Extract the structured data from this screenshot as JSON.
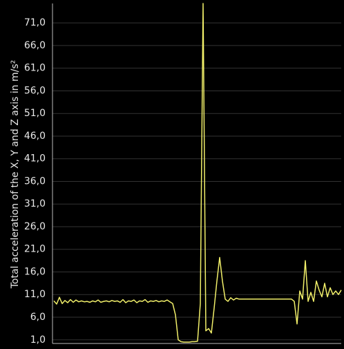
{
  "chart_data": {
    "type": "line",
    "y_label": "Total acceleration of the X, Y and Z axis in m/s²",
    "color": "#f2f06a",
    "grid": true,
    "ylim": [
      0.2,
      75.3
    ],
    "yticks": [
      {
        "value": 1,
        "label": "1,0"
      },
      {
        "value": 6,
        "label": "6,0"
      },
      {
        "value": 11,
        "label": "11,0"
      },
      {
        "value": 16,
        "label": "16,0"
      },
      {
        "value": 21,
        "label": "21,0"
      },
      {
        "value": 26,
        "label": "26,0"
      },
      {
        "value": 31,
        "label": "31,0"
      },
      {
        "value": 36,
        "label": "36,0"
      },
      {
        "value": 41,
        "label": "41,0"
      },
      {
        "value": 46,
        "label": "46,0"
      },
      {
        "value": 51,
        "label": "51,0"
      },
      {
        "value": 56,
        "label": "56,0"
      },
      {
        "value": 61,
        "label": "61,0"
      },
      {
        "value": 66,
        "label": "66,0"
      },
      {
        "value": 71,
        "label": "71,0"
      }
    ],
    "values": [
      9.6,
      8.9,
      10.4,
      9.0,
      9.7,
      9.2,
      9.9,
      9.3,
      9.8,
      9.4,
      9.6,
      9.4,
      9.5,
      9.3,
      9.6,
      9.4,
      9.8,
      9.3,
      9.5,
      9.6,
      9.4,
      9.7,
      9.5,
      9.6,
      9.3,
      9.9,
      9.2,
      9.6,
      9.5,
      9.8,
      9.2,
      9.6,
      9.5,
      9.9,
      9.3,
      9.6,
      9.5,
      9.7,
      9.4,
      9.6,
      9.5,
      9.8,
      9.4,
      9.0,
      6.5,
      1.0,
      0.6,
      0.5,
      0.5,
      0.5,
      0.6,
      0.6,
      0.7,
      9.0,
      75.3,
      3.0,
      3.5,
      2.5,
      8.0,
      14.0,
      19.2,
      14.0,
      10.0,
      9.5,
      10.3,
      9.8,
      10.2,
      10.0,
      10.0,
      10.0,
      10.0,
      10.0,
      10.0,
      10.0,
      10.0,
      10.0,
      10.0,
      10.0,
      10.0,
      10.0,
      10.0,
      10.0,
      10.0,
      10.0,
      10.0,
      10.0,
      10.0,
      9.5,
      4.5,
      11.8,
      10.0,
      18.5,
      9.5,
      11.5,
      9.5,
      14.0,
      12.0,
      10.5,
      13.5,
      10.5,
      12.5,
      11.0,
      11.8,
      11.0,
      12.0
    ]
  }
}
